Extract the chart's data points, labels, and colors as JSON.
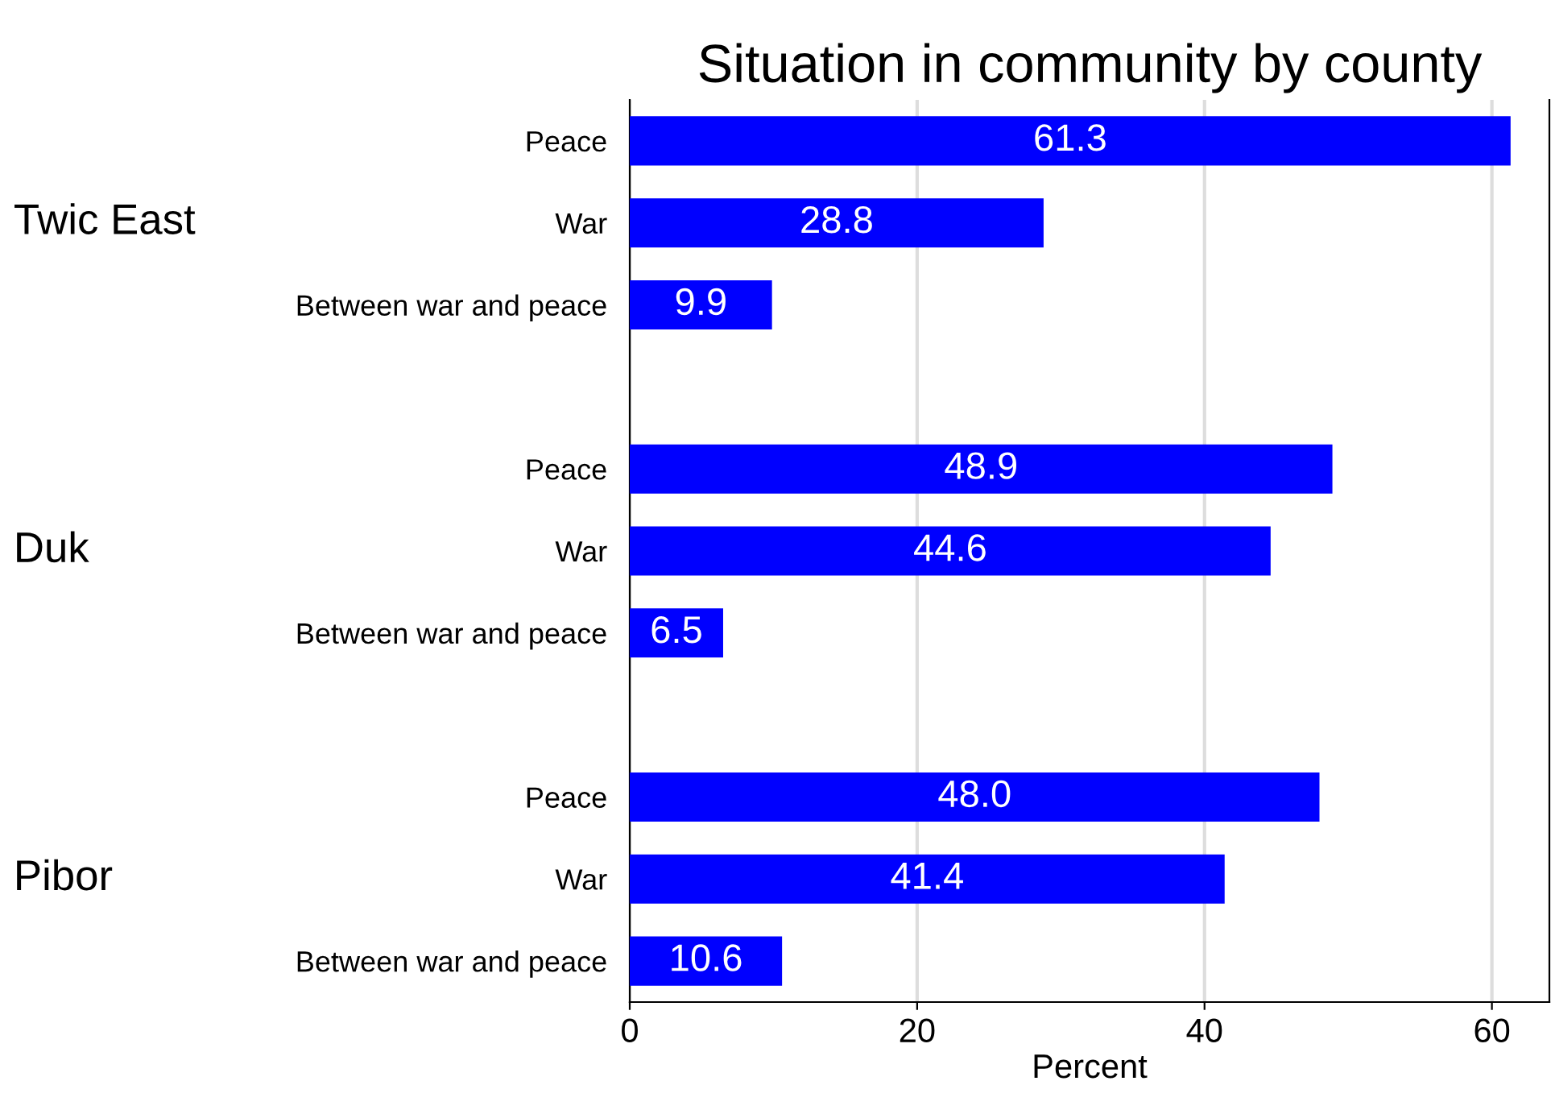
{
  "chart_data": {
    "type": "bar",
    "orientation": "horizontal",
    "title": "Situation in community by county",
    "xlabel": "Percent",
    "categories": [
      "Peace",
      "War",
      "Between war and peace",
      null,
      "Peace",
      "War",
      "Between war and peace",
      null,
      "Peace",
      "War",
      "Between war and peace"
    ],
    "values": [
      61.3,
      28.8,
      9.9,
      null,
      48.9,
      44.6,
      6.5,
      null,
      48.0,
      41.4,
      10.6
    ],
    "value_labels": [
      "61.3",
      "28.8",
      "9.9",
      null,
      "48.9",
      "44.6",
      "6.5",
      null,
      "48.0",
      "41.4",
      "10.6"
    ],
    "color": "#0000ff",
    "annotations": [
      "Twic East",
      "Duk",
      "Pibor"
    ],
    "xlim": [
      0,
      64
    ],
    "xticks": [
      0,
      20,
      40,
      60
    ],
    "grid": "x",
    "legend": false
  }
}
